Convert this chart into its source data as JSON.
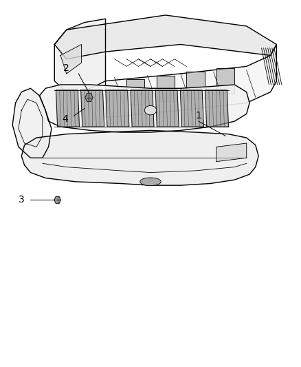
{
  "background_color": "#ffffff",
  "line_color": "#000000",
  "label_color": "#000000",
  "figsize": [
    4.38,
    5.33
  ],
  "dpi": 100
}
